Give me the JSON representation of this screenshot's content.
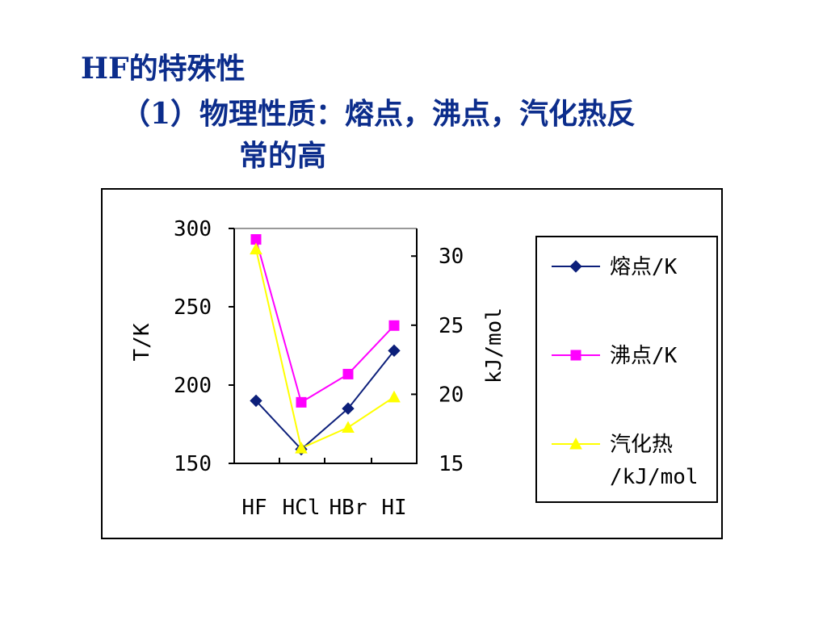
{
  "slide": {
    "title": "HF的特殊性",
    "line2": "（1）物理性质：熔点，沸点，汽化热反",
    "line3": "常的高"
  },
  "chart_data": {
    "type": "line",
    "categories": [
      "HF",
      "HCl",
      "HBr",
      "HI"
    ],
    "left_axis": {
      "label": "T/K",
      "range": [
        150,
        300
      ],
      "ticks": [
        150,
        200,
        250,
        300
      ]
    },
    "right_axis": {
      "label": "kJ/mol",
      "range": [
        15,
        32
      ],
      "ticks": [
        15,
        20,
        25,
        30
      ]
    },
    "series": [
      {
        "name": "熔点/K",
        "axis": "left",
        "marker": "diamond",
        "color": "#0c1f7a",
        "values": [
          190,
          159,
          185,
          222
        ]
      },
      {
        "name": "沸点/K",
        "axis": "left",
        "marker": "square",
        "color": "#ff00ff",
        "values": [
          293,
          189,
          207,
          238
        ]
      },
      {
        "name": "汽化热/kJ/mol",
        "legend_lines": [
          "汽化热",
          "/kJ/mol"
        ],
        "axis": "right",
        "marker": "triangle",
        "color": "#ffff00",
        "values": [
          30.5,
          16.1,
          17.6,
          19.8
        ]
      }
    ],
    "legend_position": "right",
    "grid": false
  }
}
